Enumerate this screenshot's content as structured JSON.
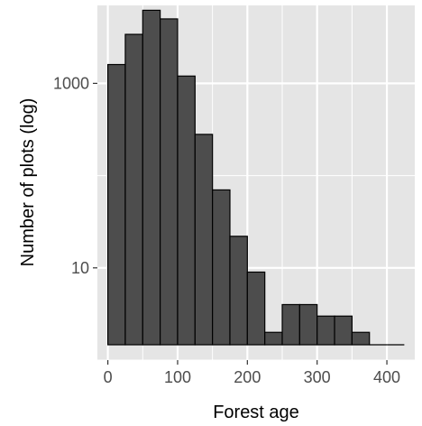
{
  "chart_data": {
    "type": "bar",
    "xlabel": "Forest age",
    "ylabel": "Number of plots (log)",
    "y_scale": "log10",
    "xlim": [
      -15,
      440
    ],
    "ylim": [
      1,
      7000
    ],
    "bin_width": 25,
    "bins": [
      {
        "x0": 0,
        "x1": 25,
        "value": 1600
      },
      {
        "x0": 25,
        "x1": 50,
        "value": 3400
      },
      {
        "x0": 50,
        "x1": 75,
        "value": 6200
      },
      {
        "x0": 75,
        "x1": 100,
        "value": 5000
      },
      {
        "x0": 100,
        "x1": 125,
        "value": 1200
      },
      {
        "x0": 125,
        "x1": 150,
        "value": 280
      },
      {
        "x0": 150,
        "x1": 175,
        "value": 70
      },
      {
        "x0": 175,
        "x1": 200,
        "value": 22
      },
      {
        "x0": 200,
        "x1": 225,
        "value": 9
      },
      {
        "x0": 225,
        "x1": 250,
        "value": 2
      },
      {
        "x0": 250,
        "x1": 275,
        "value": 4
      },
      {
        "x0": 275,
        "x1": 300,
        "value": 4
      },
      {
        "x0": 300,
        "x1": 325,
        "value": 3
      },
      {
        "x0": 325,
        "x1": 350,
        "value": 3
      },
      {
        "x0": 350,
        "x1": 375,
        "value": 2
      },
      {
        "x0": 375,
        "x1": 400,
        "value": 1
      },
      {
        "x0": 400,
        "x1": 425,
        "value": 1
      }
    ],
    "x_ticks": [
      {
        "value": 0,
        "label": "0"
      },
      {
        "value": 100,
        "label": "100"
      },
      {
        "value": 200,
        "label": "200"
      },
      {
        "value": 300,
        "label": "300"
      },
      {
        "value": 400,
        "label": "400"
      }
    ],
    "y_ticks": [
      {
        "value": 10,
        "label": "10"
      },
      {
        "value": 1000,
        "label": "1000"
      }
    ],
    "y_minor_gridlines": [
      1,
      100
    ],
    "grid": true,
    "bar_fill": "#4d4d4d",
    "bar_stroke": "#000000",
    "panel_background": "#e5e5e5",
    "grid_color": "#ffffff"
  }
}
